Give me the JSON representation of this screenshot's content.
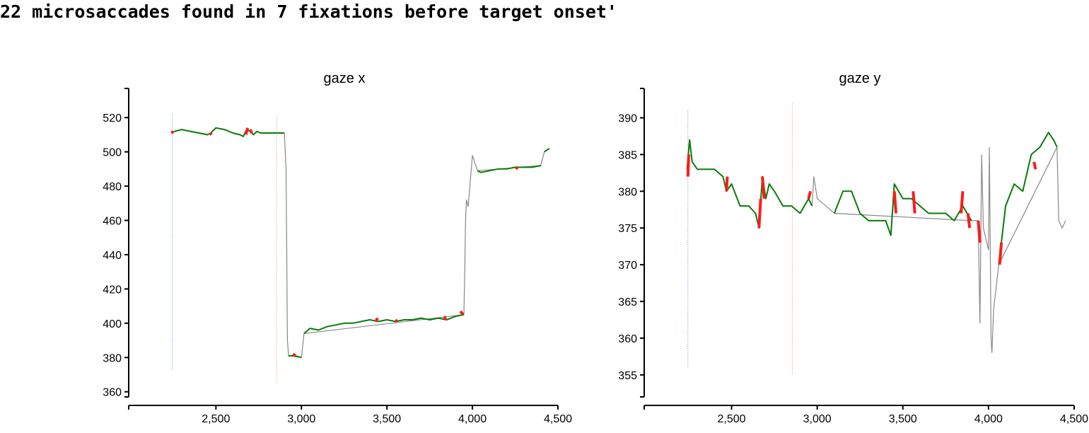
{
  "header": {
    "text": "22 microsaccades found in 7 fixations before target onset'"
  },
  "colors": {
    "raw": "#888888",
    "fixation": "#0a7a0a",
    "microsaccade": "#ff1a1a",
    "marker_start": "#4a90c8",
    "marker_target": "#e8906a"
  },
  "chart_data": [
    {
      "type": "line",
      "title": "gaze x",
      "xlabel": "",
      "ylabel": "",
      "xlim": [
        1990,
        4500
      ],
      "ylim": [
        357,
        537
      ],
      "xticks": [
        2500,
        3000,
        3500,
        4000,
        4500
      ],
      "xtick_labels": [
        "2,500",
        "3,000",
        "3,500",
        "4,000",
        "4,500"
      ],
      "yticks": [
        360,
        380,
        400,
        420,
        440,
        460,
        480,
        500,
        520
      ],
      "grid": false,
      "vlines": [
        {
          "x": 2245,
          "y_range": [
            372,
            522
          ],
          "role": "start"
        },
        {
          "x": 2855,
          "y_range": [
            365,
            521
          ],
          "role": "target-onset"
        }
      ],
      "series": [
        {
          "role": "raw",
          "points": [
            [
              2900,
              511
            ],
            [
              2910,
              490
            ],
            [
              2915,
              430
            ],
            [
              2918,
              390
            ],
            [
              2925,
              381
            ],
            [
              3000,
              380
            ],
            [
              3015,
              394
            ],
            [
              3950,
              405
            ],
            [
              3955,
              430
            ],
            [
              3960,
              460
            ],
            [
              3965,
              472
            ],
            [
              3975,
              468
            ],
            [
              4000,
              498
            ],
            [
              4010,
              495
            ],
            [
              4030,
              489
            ],
            [
              4400,
              492
            ],
            [
              4420,
              500
            ],
            [
              4450,
              502
            ]
          ]
        },
        {
          "role": "fixation",
          "segments": [
            [
              [
                2240,
                511
              ],
              [
                2260,
                512
              ],
              [
                2300,
                513
              ],
              [
                2350,
                512
              ],
              [
                2400,
                511
              ],
              [
                2450,
                510
              ],
              [
                2470,
                511
              ],
              [
                2500,
                514
              ],
              [
                2550,
                513
              ],
              [
                2600,
                511
              ],
              [
                2640,
                510
              ],
              [
                2660,
                509
              ],
              [
                2680,
                513
              ],
              [
                2700,
                512
              ],
              [
                2720,
                510
              ],
              [
                2740,
                512
              ],
              [
                2760,
                511
              ],
              [
                2800,
                511
              ],
              [
                2850,
                511
              ],
              [
                2900,
                511
              ]
            ],
            [
              [
                2925,
                381
              ],
              [
                2960,
                381
              ],
              [
                3000,
                380
              ]
            ],
            [
              [
                3015,
                394
              ],
              [
                3050,
                397
              ],
              [
                3100,
                396
              ],
              [
                3150,
                398
              ],
              [
                3200,
                399
              ],
              [
                3250,
                400
              ],
              [
                3300,
                400
              ],
              [
                3350,
                401
              ],
              [
                3400,
                402
              ],
              [
                3450,
                401
              ],
              [
                3500,
                402
              ],
              [
                3550,
                401
              ],
              [
                3600,
                402
              ],
              [
                3650,
                402
              ],
              [
                3700,
                403
              ],
              [
                3750,
                402
              ],
              [
                3800,
                403
              ],
              [
                3850,
                402
              ],
              [
                3900,
                404
              ],
              [
                3950,
                405
              ]
            ],
            [
              [
                4030,
                489
              ],
              [
                4050,
                488
              ],
              [
                4100,
                489
              ],
              [
                4150,
                490
              ],
              [
                4200,
                490
              ],
              [
                4250,
                491
              ],
              [
                4300,
                491
              ],
              [
                4350,
                491
              ],
              [
                4400,
                492
              ]
            ],
            [
              [
                4420,
                500
              ],
              [
                4450,
                502
              ]
            ]
          ]
        },
        {
          "role": "microsaccade",
          "segments": [
            [
              [
                2240,
                511
              ],
              [
                2250,
                512
              ]
            ],
            [
              [
                2465,
                511
              ],
              [
                2475,
                510
              ]
            ],
            [
              [
                2675,
                510
              ],
              [
                2685,
                514
              ]
            ],
            [
              [
                2700,
                513
              ],
              [
                2710,
                511
              ]
            ],
            [
              [
                2950,
                382
              ],
              [
                2965,
                381
              ]
            ],
            [
              [
                3435,
                401
              ],
              [
                3445,
                403
              ]
            ],
            [
              [
                3550,
                402
              ],
              [
                3560,
                401
              ]
            ],
            [
              [
                3835,
                404
              ],
              [
                3845,
                402
              ]
            ],
            [
              [
                3930,
                407
              ],
              [
                3945,
                405
              ]
            ],
            [
              [
                4255,
                491
              ],
              [
                4265,
                490
              ]
            ]
          ]
        }
      ]
    },
    {
      "type": "line",
      "title": "gaze y",
      "xlabel": "",
      "ylabel": "",
      "xlim": [
        1990,
        4500
      ],
      "ylim": [
        352,
        394
      ],
      "xticks": [
        2500,
        3000,
        3500,
        4000,
        4500
      ],
      "xtick_labels": [
        "2,500",
        "3,000",
        "3,500",
        "4,000",
        "4,500"
      ],
      "yticks": [
        355,
        360,
        365,
        370,
        375,
        380,
        385,
        390
      ],
      "grid": false,
      "vlines": [
        {
          "x": 2245,
          "y_range": [
            356,
            391
          ],
          "role": "start"
        },
        {
          "x": 2855,
          "y_range": [
            355,
            392
          ],
          "role": "target-onset"
        }
      ],
      "series": [
        {
          "role": "raw",
          "points": [
            [
              2970,
              378
            ],
            [
              2980,
              382
            ],
            [
              3000,
              379
            ],
            [
              3050,
              378
            ],
            [
              3100,
              377
            ],
            [
              3900,
              376
            ],
            [
              3940,
              376
            ],
            [
              3950,
              362
            ],
            [
              3960,
              385
            ],
            [
              3970,
              375
            ],
            [
              4000,
              372
            ],
            [
              4005,
              386
            ],
            [
              4015,
              360
            ],
            [
              4020,
              358
            ],
            [
              4030,
              364
            ],
            [
              4060,
              370
            ],
            [
              4400,
              386
            ],
            [
              4410,
              376
            ],
            [
              4430,
              375
            ],
            [
              4450,
              376
            ]
          ]
        },
        {
          "role": "fixation",
          "segments": [
            [
              [
                2240,
                383
              ],
              [
                2255,
                387
              ],
              [
                2270,
                384
              ],
              [
                2300,
                383
              ],
              [
                2350,
                383
              ],
              [
                2400,
                383
              ],
              [
                2450,
                382
              ],
              [
                2470,
                380
              ],
              [
                2500,
                381
              ],
              [
                2550,
                378
              ],
              [
                2600,
                378
              ],
              [
                2640,
                377
              ],
              [
                2660,
                375
              ],
              [
                2680,
                382
              ],
              [
                2700,
                379
              ],
              [
                2720,
                381
              ],
              [
                2750,
                380
              ],
              [
                2800,
                378
              ],
              [
                2850,
                378
              ],
              [
                2900,
                377
              ],
              [
                2950,
                379
              ],
              [
                2970,
                378
              ]
            ],
            [
              [
                3100,
                377
              ],
              [
                3150,
                380
              ],
              [
                3200,
                380
              ],
              [
                3250,
                377
              ],
              [
                3300,
                376
              ],
              [
                3350,
                376
              ],
              [
                3400,
                376
              ],
              [
                3430,
                374
              ],
              [
                3450,
                381
              ],
              [
                3500,
                379
              ],
              [
                3550,
                379
              ],
              [
                3600,
                378
              ],
              [
                3650,
                377
              ],
              [
                3700,
                377
              ],
              [
                3750,
                377
              ],
              [
                3800,
                376
              ],
              [
                3850,
                378
              ],
              [
                3900,
                376
              ]
            ],
            [
              [
                4060,
                370
              ],
              [
                4100,
                378
              ],
              [
                4150,
                381
              ],
              [
                4200,
                380
              ],
              [
                4250,
                385
              ],
              [
                4300,
                386
              ],
              [
                4350,
                388
              ],
              [
                4380,
                387
              ],
              [
                4400,
                386
              ]
            ]
          ]
        },
        {
          "role": "microsaccade",
          "segments": [
            [
              [
                2245,
                382
              ],
              [
                2250,
                385
              ]
            ],
            [
              [
                2470,
                380
              ],
              [
                2475,
                382
              ]
            ],
            [
              [
                2660,
                375
              ],
              [
                2670,
                379
              ]
            ],
            [
              [
                2680,
                382
              ],
              [
                2690,
                379
              ]
            ],
            [
              [
                2950,
                379
              ],
              [
                2960,
                380
              ]
            ],
            [
              [
                3450,
                380
              ],
              [
                3460,
                377
              ]
            ],
            [
              [
                3560,
                380
              ],
              [
                3570,
                377
              ]
            ],
            [
              [
                3840,
                377
              ],
              [
                3850,
                380
              ]
            ],
            [
              [
                3880,
                377
              ],
              [
                3890,
                375
              ]
            ],
            [
              [
                3940,
                376
              ],
              [
                3950,
                373
              ]
            ],
            [
              [
                4065,
                370
              ],
              [
                4075,
                373
              ]
            ],
            [
              [
                4265,
                384
              ],
              [
                4275,
                383
              ]
            ]
          ]
        }
      ]
    }
  ]
}
